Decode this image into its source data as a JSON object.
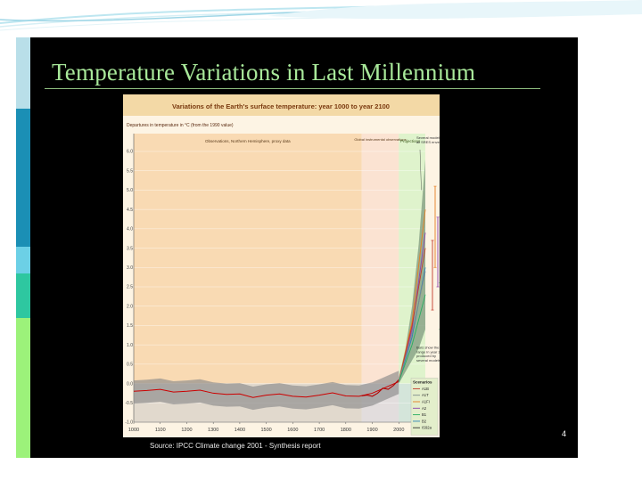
{
  "slide": {
    "title": "Temperature Variations in Last Millennium",
    "source": "Source: IPCC Climate change 2001 - Synthesis report",
    "page_number": "4"
  },
  "chart_data": {
    "type": "line",
    "title": "Variations of the Earth's surface temperature: year 1000 to year 2100",
    "ylabel": "Departures in temperature in °C (from the 1990 value)",
    "xlim": [
      1000,
      2100
    ],
    "ylim": [
      -1.0,
      6.0
    ],
    "x_ticks": [
      "1000",
      "1100",
      "1200",
      "1300",
      "1400",
      "1500",
      "1600",
      "1700",
      "1800",
      "1900",
      "2000",
      "2100"
    ],
    "y_ticks": [
      "-1.0",
      "-0.5",
      "0.0",
      "0.5",
      "1.0",
      "1.5",
      "2.0",
      "2.5",
      "3.0",
      "3.5",
      "4.0",
      "4.5",
      "5.0",
      "5.5",
      "6.0"
    ],
    "period_labels": {
      "observations": "Observations, Northern Hemisphere, proxy data",
      "instrumental": "Global instrumental observations",
      "projections": "Projections"
    },
    "annotations": {
      "several_models": "Several models all SRES envelope",
      "bars_note": "Bars show the range in year 2100 produced by several models"
    },
    "legend_title": "Scenarios",
    "scenarios": [
      {
        "name": "A1B",
        "color": "#c0392b"
      },
      {
        "name": "A1T",
        "color": "#7f8c8d"
      },
      {
        "name": "A1FI",
        "color": "#e67e22"
      },
      {
        "name": "A2",
        "color": "#8e44ad"
      },
      {
        "name": "B1",
        "color": "#27ae60"
      },
      {
        "name": "B2",
        "color": "#2980b9"
      },
      {
        "name": "IS92a",
        "color": "#333333"
      }
    ],
    "proxy_series": {
      "x": [
        1000,
        1050,
        1100,
        1150,
        1200,
        1250,
        1300,
        1350,
        1400,
        1450,
        1500,
        1550,
        1600,
        1650,
        1700,
        1750,
        1800,
        1850,
        1900,
        1950,
        2000
      ],
      "y": [
        -0.2,
        -0.18,
        -0.15,
        -0.22,
        -0.2,
        -0.17,
        -0.25,
        -0.28,
        -0.27,
        -0.36,
        -0.3,
        -0.27,
        -0.33,
        -0.35,
        -0.3,
        -0.24,
        -0.32,
        -0.33,
        -0.25,
        -0.1,
        0.05
      ]
    },
    "instrumental_series": {
      "x": [
        1860,
        1880,
        1900,
        1920,
        1940,
        1960,
        1980,
        2000
      ],
      "y": [
        -0.32,
        -0.3,
        -0.33,
        -0.25,
        -0.12,
        -0.15,
        -0.05,
        0.1
      ]
    },
    "projection_envelope": {
      "x": [
        2000,
        2025,
        2050,
        2075,
        2100
      ],
      "low": [
        0.0,
        0.3,
        0.6,
        0.9,
        1.4
      ],
      "high": [
        0.15,
        0.9,
        2.0,
        3.6,
        5.8
      ]
    },
    "projection_series": [
      {
        "name": "A1FI",
        "x": [
          2000,
          2050,
          2100
        ],
        "y": [
          0.05,
          1.6,
          4.5
        ]
      },
      {
        "name": "A2",
        "x": [
          2000,
          2050,
          2100
        ],
        "y": [
          0.05,
          1.4,
          3.9
        ]
      },
      {
        "name": "A1B",
        "x": [
          2000,
          2050,
          2100
        ],
        "y": [
          0.05,
          1.5,
          3.5
        ]
      },
      {
        "name": "B2",
        "x": [
          2000,
          2050,
          2100
        ],
        "y": [
          0.05,
          1.2,
          3.0
        ]
      },
      {
        "name": "A1T",
        "x": [
          2000,
          2050,
          2100
        ],
        "y": [
          0.05,
          1.3,
          2.9
        ]
      },
      {
        "name": "B1",
        "x": [
          2000,
          2050,
          2100
        ],
        "y": [
          0.05,
          1.0,
          2.3
        ]
      }
    ],
    "range_bars_2100": [
      {
        "name": "A1B",
        "low": 1.9,
        "high": 3.7,
        "color": "#c0392b"
      },
      {
        "name": "A1FI",
        "low": 3.0,
        "high": 5.1,
        "color": "#e67e22"
      },
      {
        "name": "A2",
        "low": 2.5,
        "high": 4.3,
        "color": "#8e44ad"
      },
      {
        "name": "B1",
        "low": 1.4,
        "high": 2.6,
        "color": "#27ae60"
      },
      {
        "name": "B2",
        "low": 2.0,
        "high": 3.3,
        "color": "#2980b9"
      },
      {
        "name": "IS92a",
        "low": 2.3,
        "high": 3.7,
        "color": "#333333"
      }
    ],
    "colors": {
      "observations_bg": "#f6c48a",
      "instrumental_bg": "#fbe3d2",
      "projections_bg": "#dff3cc",
      "proxy_band": "#8a8a8a",
      "proxy_line": "#cc0000",
      "envelope": "#7f9a7f"
    }
  }
}
